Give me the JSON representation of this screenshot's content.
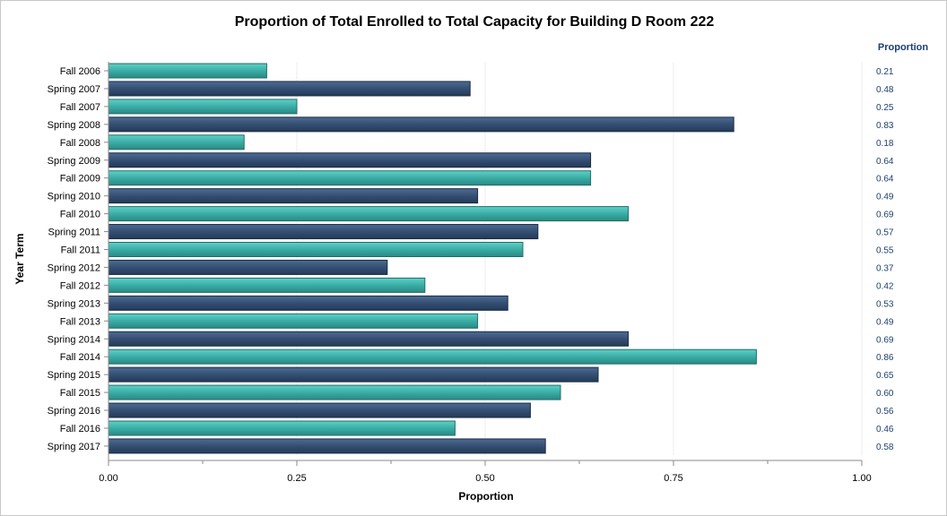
{
  "chart_data": {
    "type": "bar",
    "orientation": "horizontal",
    "title": "Proportion of Total Enrolled to Total Capacity for Building D Room 222",
    "xlabel": "Proportion",
    "ylabel": "Year Term",
    "xlim": [
      0,
      1
    ],
    "x_ticks": [
      "0.00",
      "0.25",
      "0.50",
      "0.75",
      "1.00"
    ],
    "grid": "vertical",
    "value_column_header": "Proportion",
    "categories": [
      "Fall 2006",
      "Spring 2007",
      "Fall 2007",
      "Spring 2008",
      "Fall 2008",
      "Spring 2009",
      "Fall 2009",
      "Spring 2010",
      "Fall 2010",
      "Spring 2011",
      "Fall 2011",
      "Spring 2012",
      "Fall 2012",
      "Spring 2013",
      "Fall 2013",
      "Spring 2014",
      "Fall 2014",
      "Spring 2015",
      "Fall 2015",
      "Spring 2016",
      "Fall 2016",
      "Spring 2017"
    ],
    "values": [
      0.21,
      0.48,
      0.25,
      0.83,
      0.18,
      0.64,
      0.64,
      0.49,
      0.69,
      0.57,
      0.55,
      0.37,
      0.42,
      0.53,
      0.49,
      0.69,
      0.86,
      0.65,
      0.6,
      0.56,
      0.46,
      0.58
    ],
    "value_labels": [
      "0.21",
      "0.48",
      "0.25",
      "0.83",
      "0.18",
      "0.64",
      "0.64",
      "0.49",
      "0.69",
      "0.57",
      "0.55",
      "0.37",
      "0.42",
      "0.53",
      "0.49",
      "0.69",
      "0.86",
      "0.65",
      "0.60",
      "0.56",
      "0.46",
      "0.58"
    ],
    "colors": {
      "fall": "#3aada6",
      "spring": "#344f73",
      "value_text": "#1c3f6e"
    }
  }
}
